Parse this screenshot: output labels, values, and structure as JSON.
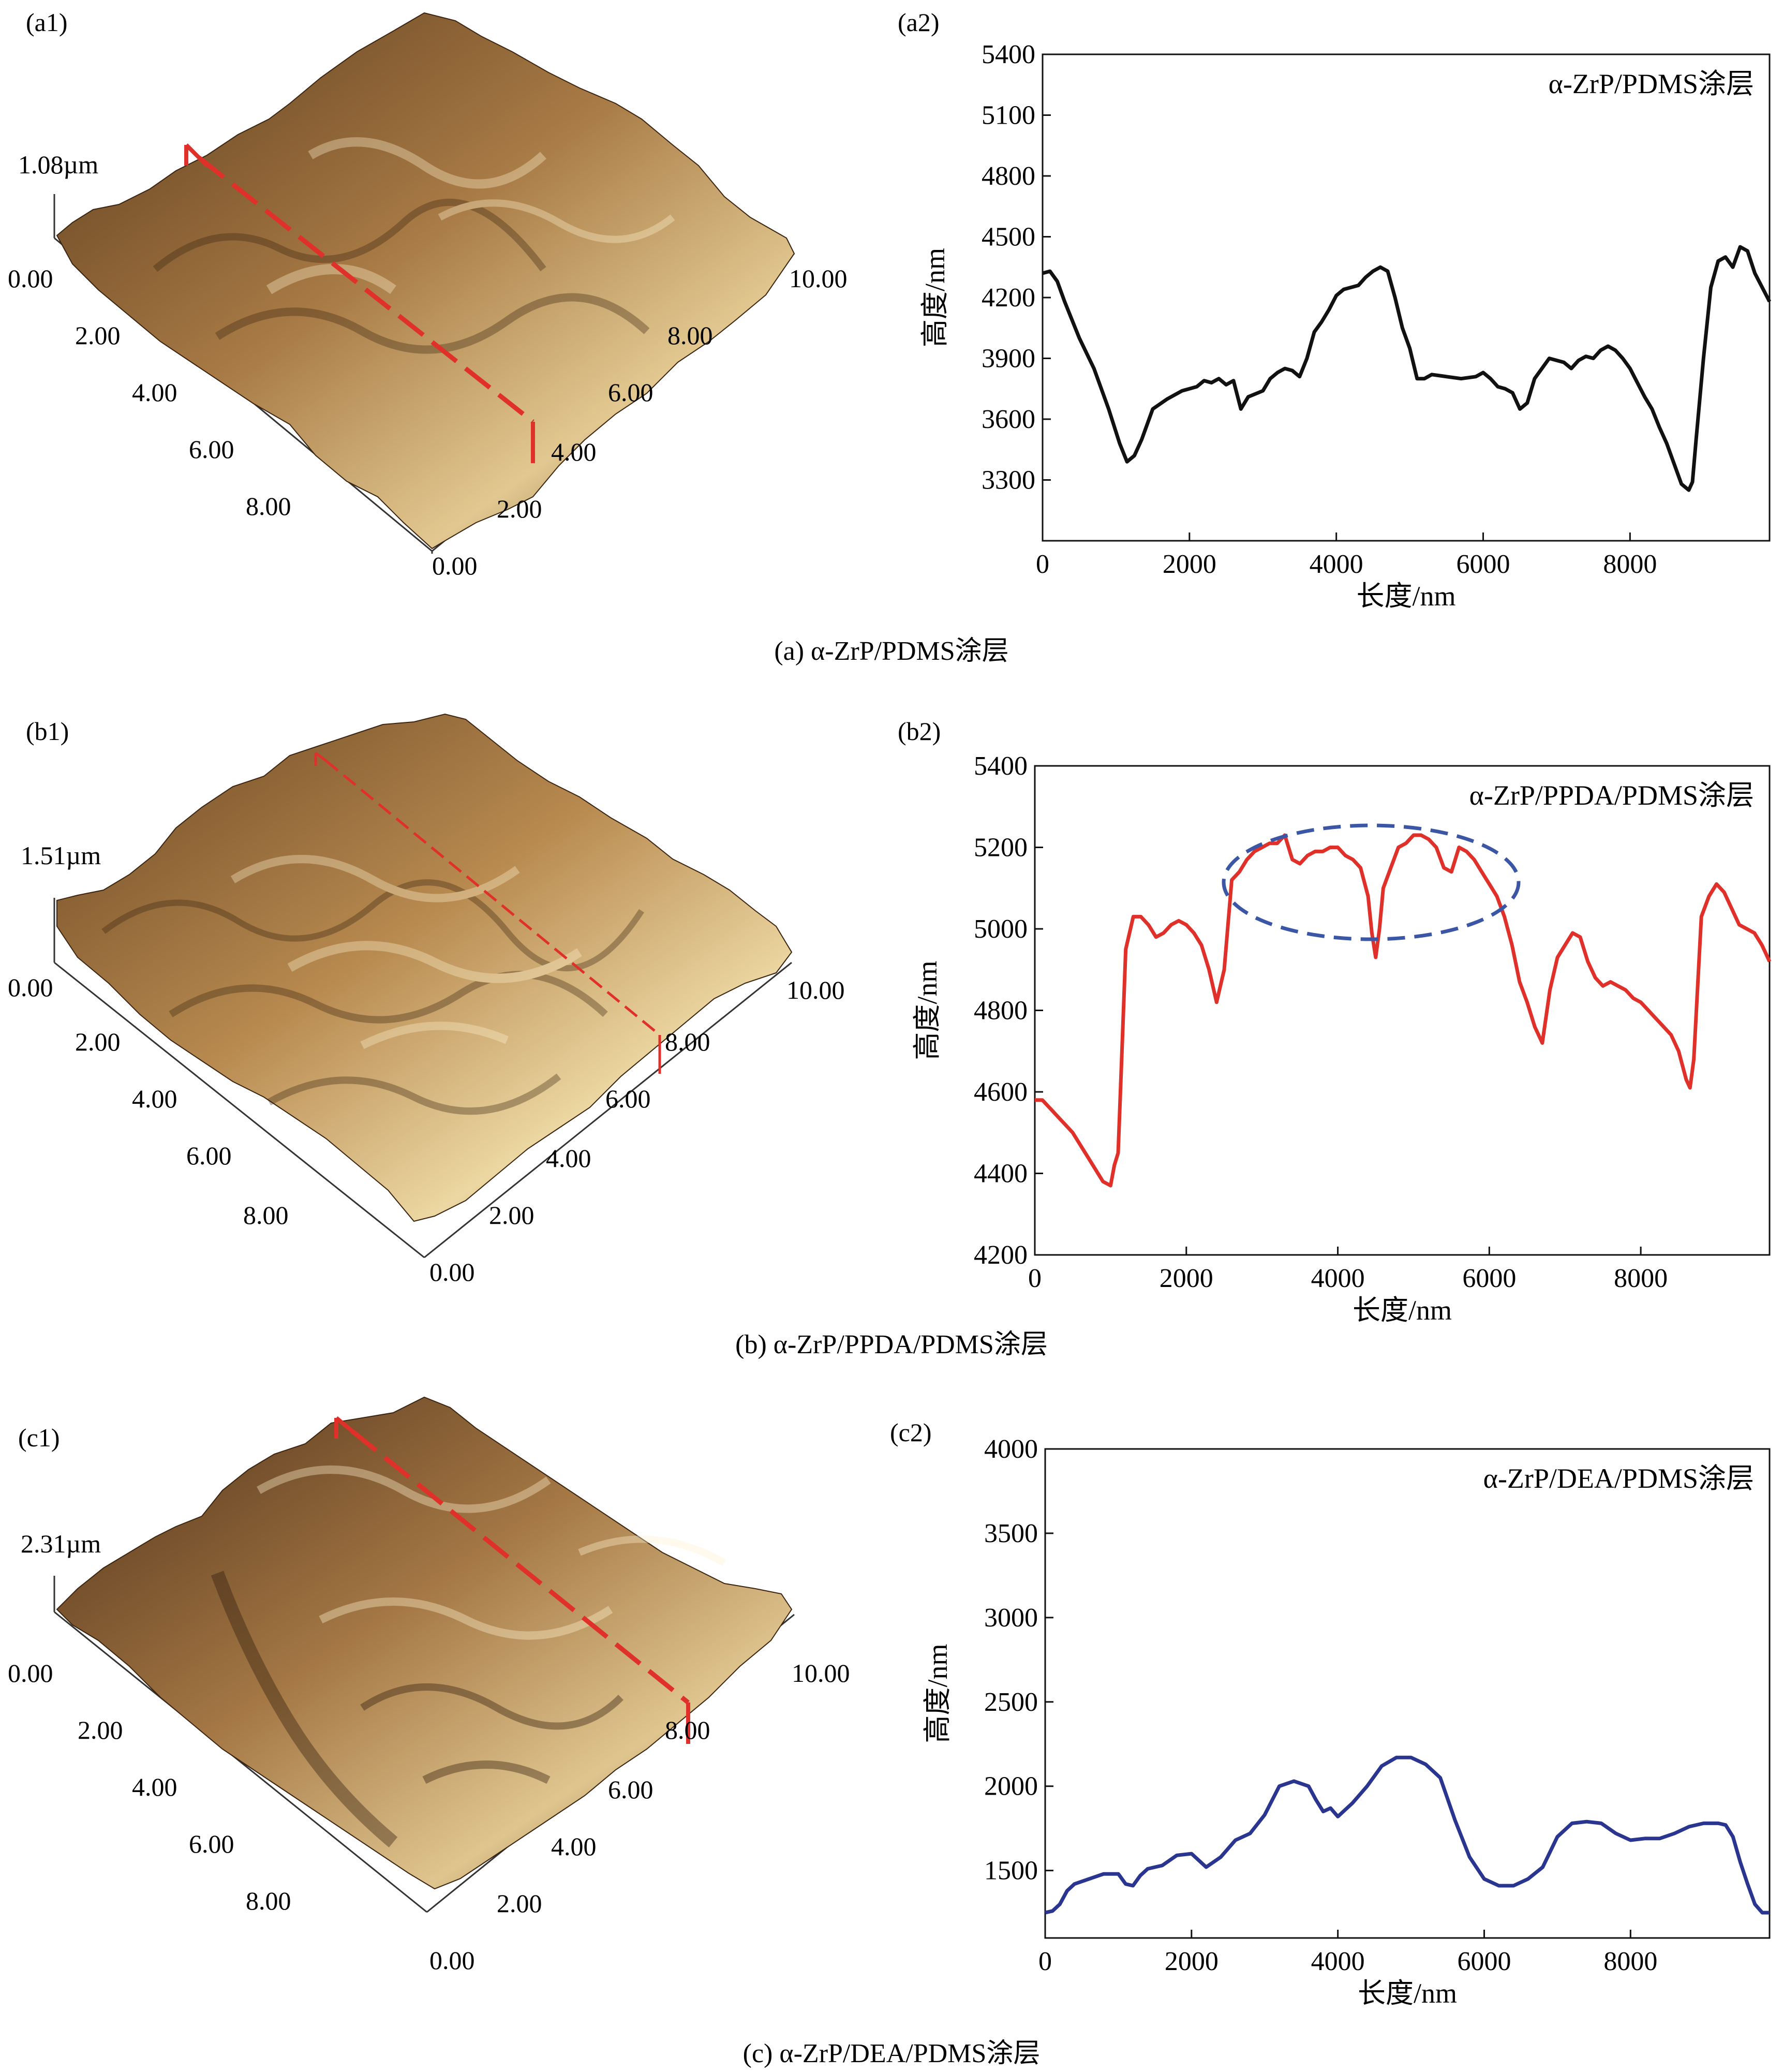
{
  "panels": {
    "a": {
      "label3d": "(a1)",
      "label2d": "(a2)",
      "caption": "(a) α-ZrP/PDMS涂层",
      "height_label": "1.08µm",
      "z_zero": "0.00",
      "left_ticks": [
        "2.00",
        "4.00",
        "6.00",
        "8.00"
      ],
      "right_ticks": [
        "2.00",
        "4.00",
        "6.00",
        "8.00",
        "10.00"
      ],
      "bottom_zero": "0.00",
      "surface_colors": [
        "#5a3a1c",
        "#a87a45",
        "#e2c890"
      ],
      "line_color": "#e0302a"
    },
    "b": {
      "label3d": "(b1)",
      "label2d": "(b2)",
      "caption": "(b) α-ZrP/PPDA/PDMS涂层",
      "height_label": "1.51µm",
      "z_zero": "0.00",
      "left_ticks": [
        "2.00",
        "4.00",
        "6.00",
        "8.00"
      ],
      "right_ticks": [
        "2.00",
        "4.00",
        "6.00",
        "8.00",
        "10.00"
      ],
      "bottom_zero": "0.00",
      "surface_colors": [
        "#6b4622",
        "#b88a50",
        "#ecd7a2"
      ],
      "line_color": "#e0302a"
    },
    "c": {
      "label3d": "(c1)",
      "label2d": "(c2)",
      "caption": "(c) α-ZrP/DEA/PDMS涂层",
      "height_label": "2.31µm",
      "z_zero": "0.00",
      "left_ticks": [
        "2.00",
        "4.00",
        "6.00",
        "8.00"
      ],
      "right_ticks": [
        "2.00",
        "4.00",
        "6.00",
        "8.00",
        "10.00"
      ],
      "bottom_zero": "0.00",
      "surface_colors": [
        "#4e3018",
        "#a57845",
        "#e0c58e"
      ],
      "line_color": "#e0302a"
    }
  },
  "chart_data": [
    {
      "type": "line",
      "panel": "a2",
      "title": "α-ZrP/PDMS涂层",
      "xlabel": "长度/nm",
      "ylabel": "高度/nm",
      "xlim": [
        0,
        9900
      ],
      "ylim": [
        3000,
        5400
      ],
      "xticks": [
        0,
        2000,
        4000,
        6000,
        8000
      ],
      "yticks": [
        3300,
        3600,
        3900,
        4200,
        4500,
        4800,
        5100,
        5400
      ],
      "color": "#111111",
      "x": [
        0,
        100,
        200,
        300,
        500,
        700,
        900,
        1050,
        1150,
        1250,
        1350,
        1450,
        1500,
        1700,
        1900,
        2000,
        2100,
        2200,
        2300,
        2400,
        2500,
        2600,
        2700,
        2800,
        3000,
        3100,
        3200,
        3300,
        3400,
        3500,
        3600,
        3700,
        3800,
        3900,
        4000,
        4100,
        4200,
        4300,
        4400,
        4500,
        4600,
        4700,
        4800,
        4900,
        5000,
        5100,
        5200,
        5300,
        5500,
        5700,
        5900,
        6000,
        6100,
        6200,
        6300,
        6400,
        6500,
        6600,
        6700,
        6800,
        6900,
        7000,
        7100,
        7200,
        7300,
        7400,
        7500,
        7600,
        7700,
        7800,
        7900,
        8000,
        8100,
        8200,
        8300,
        8400,
        8500,
        8600,
        8700,
        8800,
        8850,
        8900,
        9000,
        9100,
        9200,
        9300,
        9400,
        9500,
        9600,
        9700,
        9800,
        9900
      ],
      "y": [
        4320,
        4330,
        4280,
        4180,
        4000,
        3850,
        3650,
        3480,
        3390,
        3420,
        3500,
        3600,
        3650,
        3700,
        3740,
        3750,
        3760,
        3790,
        3780,
        3800,
        3770,
        3790,
        3650,
        3710,
        3740,
        3800,
        3830,
        3850,
        3840,
        3810,
        3900,
        4030,
        4080,
        4140,
        4210,
        4240,
        4250,
        4260,
        4300,
        4330,
        4350,
        4330,
        4200,
        4050,
        3950,
        3800,
        3800,
        3820,
        3810,
        3800,
        3810,
        3830,
        3800,
        3760,
        3750,
        3730,
        3650,
        3680,
        3800,
        3850,
        3900,
        3890,
        3880,
        3850,
        3890,
        3910,
        3900,
        3940,
        3960,
        3940,
        3900,
        3850,
        3780,
        3710,
        3650,
        3560,
        3480,
        3380,
        3280,
        3250,
        3290,
        3500,
        3900,
        4250,
        4380,
        4400,
        4350,
        4450,
        4430,
        4320,
        4250,
        4180
      ]
    },
    {
      "type": "line",
      "panel": "b2",
      "title": "α-ZrP/PPDA/PDMS涂层",
      "xlabel": "长度/nm",
      "ylabel": "高度/nm",
      "xlim": [
        0,
        9700
      ],
      "ylim": [
        4200,
        5400
      ],
      "xticks": [
        0,
        2000,
        4000,
        6000,
        8000
      ],
      "yticks": [
        4200,
        4400,
        4600,
        4800,
        5000,
        5200,
        5400
      ],
      "color": "#e0302a",
      "x": [
        0,
        100,
        200,
        300,
        400,
        500,
        600,
        700,
        800,
        900,
        1000,
        1050,
        1100,
        1150,
        1200,
        1300,
        1400,
        1500,
        1600,
        1700,
        1800,
        1900,
        2000,
        2100,
        2200,
        2300,
        2400,
        2500,
        2600,
        2700,
        2800,
        2900,
        3000,
        3100,
        3200,
        3300,
        3400,
        3500,
        3600,
        3700,
        3800,
        3900,
        4000,
        4100,
        4200,
        4300,
        4400,
        4450,
        4500,
        4550,
        4600,
        4700,
        4800,
        4900,
        5000,
        5100,
        5200,
        5300,
        5400,
        5500,
        5600,
        5700,
        5800,
        5900,
        6000,
        6100,
        6200,
        6300,
        6400,
        6500,
        6600,
        6700,
        6800,
        6900,
        7000,
        7100,
        7200,
        7300,
        7400,
        7500,
        7600,
        7700,
        7800,
        7900,
        8000,
        8100,
        8200,
        8300,
        8400,
        8500,
        8600,
        8650,
        8700,
        8800,
        8900,
        9000,
        9100,
        9200,
        9300,
        9400,
        9500,
        9600,
        9700
      ],
      "y": [
        4580,
        4580,
        4560,
        4540,
        4520,
        4500,
        4470,
        4440,
        4410,
        4380,
        4370,
        4420,
        4450,
        4700,
        4950,
        5030,
        5030,
        5010,
        4980,
        4990,
        5010,
        5020,
        5010,
        4990,
        4960,
        4900,
        4820,
        4900,
        5120,
        5140,
        5170,
        5190,
        5200,
        5210,
        5210,
        5230,
        5170,
        5160,
        5180,
        5190,
        5190,
        5200,
        5200,
        5180,
        5170,
        5150,
        5080,
        4990,
        4930,
        5000,
        5100,
        5150,
        5200,
        5210,
        5230,
        5230,
        5220,
        5200,
        5150,
        5140,
        5200,
        5190,
        5170,
        5140,
        5110,
        5080,
        5030,
        4960,
        4870,
        4820,
        4760,
        4720,
        4850,
        4930,
        4960,
        4990,
        4980,
        4920,
        4880,
        4860,
        4870,
        4860,
        4850,
        4830,
        4820,
        4800,
        4780,
        4760,
        4740,
        4700,
        4630,
        4610,
        4680,
        5030,
        5080,
        5110,
        5090,
        5050,
        5010,
        5000,
        4990,
        4960,
        4920
      ]
    },
    {
      "type": "line",
      "panel": "c2",
      "title": "α-ZrP/DEA/PDMS涂层",
      "xlabel": "长度/nm",
      "ylabel": "高度/nm",
      "xlim": [
        0,
        9900
      ],
      "ylim": [
        1100,
        4000
      ],
      "xticks": [
        0,
        2000,
        4000,
        6000,
        8000
      ],
      "yticks": [
        1500,
        2000,
        2500,
        3000,
        3500,
        4000
      ],
      "color": "#2a3590",
      "x": [
        0,
        100,
        200,
        300,
        400,
        600,
        800,
        1000,
        1100,
        1200,
        1300,
        1400,
        1600,
        1800,
        2000,
        2200,
        2400,
        2600,
        2800,
        3000,
        3200,
        3400,
        3600,
        3700,
        3800,
        3900,
        4000,
        4100,
        4200,
        4400,
        4600,
        4800,
        5000,
        5200,
        5400,
        5600,
        5800,
        6000,
        6200,
        6400,
        6600,
        6800,
        7000,
        7200,
        7400,
        7600,
        7800,
        8000,
        8200,
        8400,
        8600,
        8800,
        9000,
        9200,
        9300,
        9400,
        9500,
        9600,
        9700,
        9800,
        9900
      ],
      "y": [
        1250,
        1260,
        1300,
        1380,
        1420,
        1450,
        1480,
        1480,
        1420,
        1410,
        1470,
        1510,
        1530,
        1590,
        1600,
        1520,
        1580,
        1680,
        1720,
        1830,
        2000,
        2030,
        2000,
        1920,
        1850,
        1870,
        1820,
        1860,
        1900,
        2000,
        2120,
        2170,
        2170,
        2130,
        2050,
        1800,
        1580,
        1450,
        1410,
        1410,
        1450,
        1520,
        1700,
        1780,
        1790,
        1780,
        1720,
        1680,
        1690,
        1690,
        1720,
        1760,
        1780,
        1780,
        1770,
        1700,
        1550,
        1420,
        1300,
        1250,
        1250
      ]
    }
  ]
}
